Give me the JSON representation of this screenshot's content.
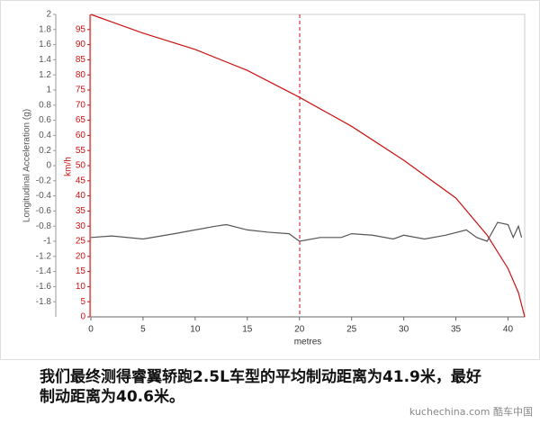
{
  "chart_data": {
    "type": "line",
    "x_label": "metres",
    "y_label": "Longitudinal Acceleration (g)",
    "y2_label": "km/h",
    "xlim": [
      0,
      41.6
    ],
    "xticks": [
      0,
      5,
      10,
      15,
      20,
      25,
      30,
      35,
      40
    ],
    "ylim": [
      -2,
      2
    ],
    "yticks": [
      2,
      1.8,
      1.6,
      1.4,
      1.2,
      1,
      0.8,
      0.6,
      0.4,
      0.2,
      0,
      -0.2,
      -0.4,
      -0.6,
      -0.8,
      -1,
      -1.2,
      -1.4,
      -1.6,
      -1.8
    ],
    "y2lim": [
      0,
      100
    ],
    "y2ticks": [
      0,
      5,
      10,
      15,
      20,
      25,
      30,
      35,
      40,
      45,
      50,
      55,
      60,
      65,
      70,
      75,
      80,
      85,
      90,
      95
    ],
    "series": [
      {
        "color": "#cc1111",
        "axis": "y2",
        "x": [
          0,
          5,
          10,
          15,
          20,
          25,
          30,
          35,
          38,
          40,
          41,
          41.6
        ],
        "values": [
          100,
          93.8,
          88.4,
          81.5,
          72.6,
          63,
          51.8,
          39.3,
          27,
          16,
          8,
          0
        ]
      },
      {
        "color": "#555555",
        "axis": "y",
        "x": [
          0,
          2,
          5,
          8,
          10,
          12,
          13,
          15,
          17,
          19,
          20,
          22,
          24,
          25,
          27,
          29,
          30,
          32,
          34,
          36,
          37,
          38,
          39,
          40,
          40.5,
          41,
          41.3
        ],
        "values": [
          -0.95,
          -0.93,
          -0.97,
          -0.9,
          -0.85,
          -0.8,
          -0.78,
          -0.85,
          -0.88,
          -0.9,
          -1.0,
          -0.95,
          -0.95,
          -0.9,
          -0.92,
          -0.97,
          -0.92,
          -0.97,
          -0.92,
          -0.85,
          -0.95,
          -1.0,
          -0.75,
          -0.78,
          -0.95,
          -0.8,
          -0.95
        ]
      }
    ]
  },
  "caption": [
    "我们最终测得睿翼轿跑2.5L车型的平均制动距离为41.9米，最好",
    "制动距离为40.6米。"
  ],
  "watermark": "kuchechina.com 酷车中国"
}
